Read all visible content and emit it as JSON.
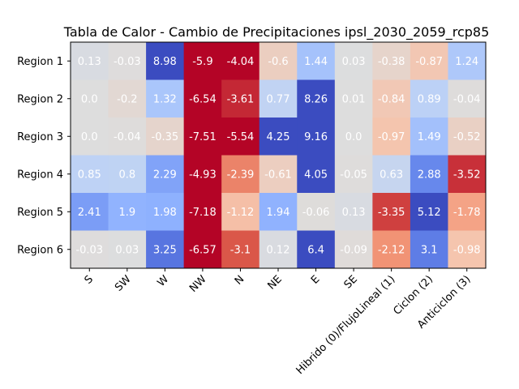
{
  "chart_data": {
    "type": "heatmap",
    "title": "Tabla de Calor - Cambio de Precipitaciones ipsl_2030_2059_rcp85",
    "xlabel": "",
    "ylabel": "",
    "colormap": "coolwarm_r",
    "vmin": -4,
    "vmax": 4,
    "colorbar": false,
    "grid": false,
    "x_categories": [
      "S",
      "SW",
      "W",
      "NW",
      "N",
      "NE",
      "E",
      "SE",
      "Hibrido (0)/FlujoLineal (1)",
      "Ciclon (2)",
      "Anticiclon (3)"
    ],
    "y_categories": [
      "Region 1",
      "Region 2",
      "Region 3",
      "Region 4",
      "Region 5",
      "Region 6"
    ],
    "values": [
      [
        0.13,
        -0.03,
        8.98,
        -5.9,
        -4.04,
        -0.6,
        1.44,
        0.03,
        -0.38,
        -0.87,
        1.24
      ],
      [
        0.0,
        -0.2,
        1.32,
        -6.54,
        -3.61,
        0.77,
        8.26,
        0.01,
        -0.84,
        0.89,
        -0.04
      ],
      [
        0.0,
        -0.04,
        -0.35,
        -7.51,
        -5.54,
        4.25,
        9.16,
        0.0,
        -0.97,
        1.49,
        -0.52
      ],
      [
        0.85,
        0.8,
        2.29,
        -4.93,
        -2.39,
        -0.61,
        4.05,
        -0.05,
        0.63,
        2.88,
        -3.52
      ],
      [
        2.41,
        1.9,
        1.98,
        -7.18,
        -1.12,
        1.94,
        -0.06,
        0.13,
        -3.35,
        5.12,
        -1.78
      ],
      [
        -0.03,
        0.03,
        3.25,
        -6.57,
        -3.1,
        0.12,
        6.4,
        -0.09,
        -2.12,
        3.1,
        -0.98
      ]
    ]
  }
}
